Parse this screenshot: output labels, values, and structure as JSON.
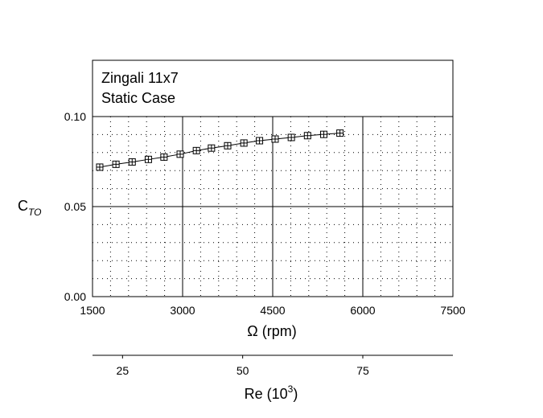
{
  "chart_data": {
    "type": "line",
    "title_lines": [
      "Zingali 11x7",
      "Static Case"
    ],
    "ylabel": "C",
    "ylabel_sub": "TO",
    "xlabel": "Ω (rpm)",
    "x2label": "Re (10",
    "x2label_sup": "3",
    "x2label_close": ")",
    "xlim": [
      1500,
      7500
    ],
    "ylim": [
      0.0,
      0.1
    ],
    "xticks": [
      1500,
      3000,
      4500,
      6000,
      7500
    ],
    "xtick_labels": [
      "1500",
      "3000",
      "4500",
      "6000",
      "7500"
    ],
    "yticks": [
      0.0,
      0.05,
      0.1
    ],
    "ytick_labels": [
      "0.00",
      "0.05",
      "0.10"
    ],
    "x2ticks": [
      25,
      50,
      75
    ],
    "x2tick_labels": [
      "25",
      "50",
      "75"
    ],
    "x2_at_x1500": 18.75,
    "x2_per_rpm": 0.0125,
    "grid": true,
    "marker": "square-plus",
    "series": [
      {
        "x": [
          1620,
          1890,
          2160,
          2430,
          2690,
          2960,
          3230,
          3480,
          3750,
          4020,
          4280,
          4540,
          4810,
          5080,
          5350,
          5620
        ],
        "y": [
          0.0719,
          0.0735,
          0.0748,
          0.0762,
          0.0775,
          0.0791,
          0.0811,
          0.0825,
          0.0838,
          0.0853,
          0.0866,
          0.0875,
          0.0884,
          0.0894,
          0.0901,
          0.0908
        ]
      }
    ]
  }
}
